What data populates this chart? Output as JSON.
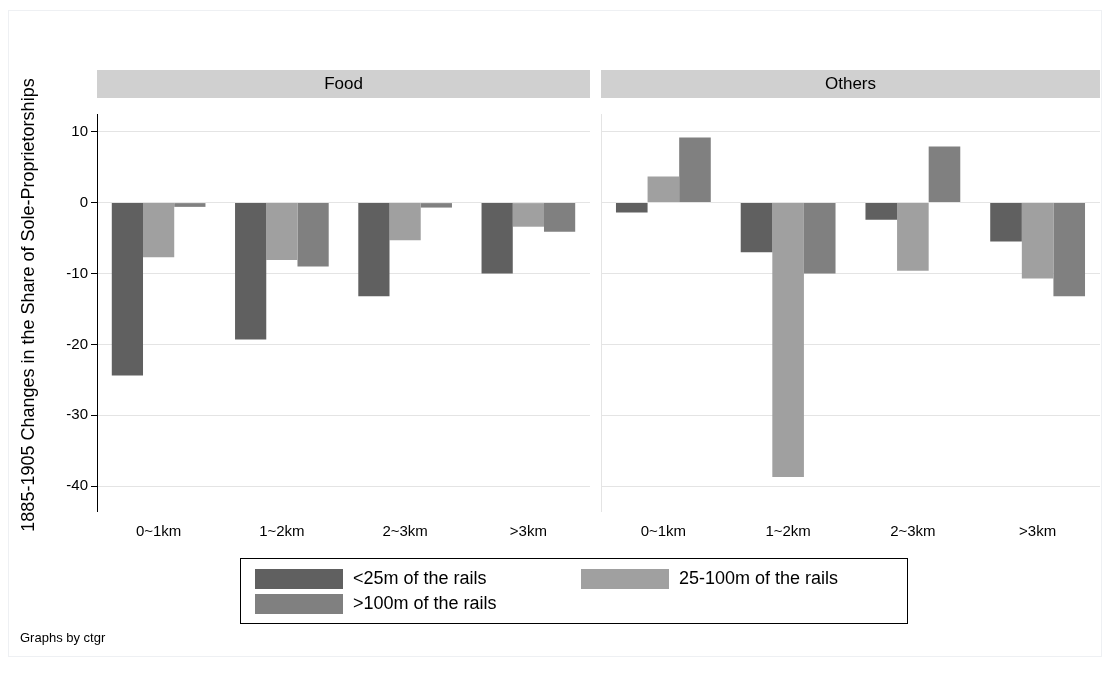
{
  "chart_data": [
    {
      "type": "bar",
      "title": "Food",
      "ylabel": "1885-1905 Changes in the Share of Sole-Proprietorships",
      "categories": [
        "0~1km",
        "1~2km",
        "2~3km",
        ">3km"
      ],
      "series": [
        {
          "name": "<25m of the rails",
          "color": "#606060",
          "values": [
            -24.4,
            -19.3,
            -13.2,
            -10.0
          ]
        },
        {
          "name": "25-100m of the rails",
          "color": "#a0a0a0",
          "values": [
            -7.7,
            -8.1,
            -5.3,
            -3.4
          ]
        },
        {
          "name": ">100m of the rails",
          "color": "#808080",
          "values": [
            -0.6,
            -9.0,
            -0.7,
            -4.1
          ]
        }
      ],
      "ylim": [
        -43.5,
        12.5
      ],
      "yticks": [
        -40,
        -30,
        -20,
        -10,
        0,
        10
      ],
      "grid": "y",
      "legend": "bottom",
      "annotations": [
        "Graphs by ctgr"
      ]
    },
    {
      "type": "bar",
      "title": "Others",
      "categories": [
        "0~1km",
        "1~2km",
        "2~3km",
        ">3km"
      ],
      "series": [
        {
          "color": "#606060",
          "values": [
            -1.4,
            -7.0,
            -2.4,
            -5.5
          ]
        },
        {
          "color": "#a0a0a0",
          "values": [
            3.7,
            -38.7,
            -9.6,
            -10.7
          ]
        },
        {
          "color": "#808080",
          "values": [
            9.2,
            -10.0,
            7.9,
            -13.2
          ]
        }
      ],
      "ylim": [
        -43.5,
        12.5
      ],
      "yticks": [
        -40,
        -30,
        -20,
        -10,
        0,
        10
      ],
      "grid": "y",
      "tick_labels": "x"
    }
  ]
}
